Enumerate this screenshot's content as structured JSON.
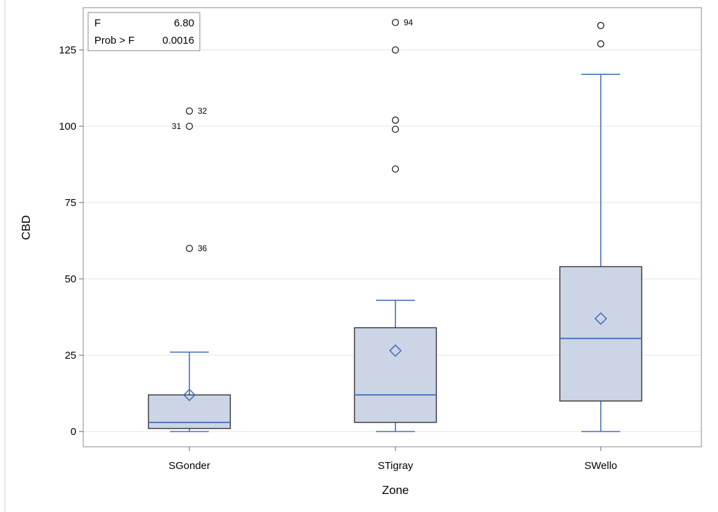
{
  "chart_data": {
    "type": "box",
    "xlabel": "Zone",
    "ylabel": "CBD",
    "ylim": [
      0,
      135
    ],
    "yticks": [
      0,
      25,
      50,
      75,
      100,
      125
    ],
    "grid": "horizontal",
    "colors": {
      "box_fill": "#cbd5e5",
      "box_edge": "#333333",
      "whisker": "#4a6fbf",
      "median": "#4a6fbf",
      "mean_marker": "#4a6fbf",
      "outlier": "#222222",
      "grid": "#e3e3e3"
    },
    "stats": {
      "f_label": "F",
      "f_value": "6.80",
      "p_label": "Prob > F",
      "p_value": "0.0016"
    },
    "groups": [
      {
        "category": "SGonder",
        "whisker_low": 0,
        "q1": 1,
        "median": 3,
        "q3": 12,
        "whisker_high": 26,
        "mean": 12,
        "outliers": [
          {
            "value": 105,
            "label": "32",
            "side": "right"
          },
          {
            "value": 100,
            "label": "31",
            "side": "left"
          },
          {
            "value": 60,
            "label": "36",
            "side": "right"
          }
        ]
      },
      {
        "category": "STigray",
        "whisker_low": 0,
        "q1": 3,
        "median": 12,
        "q3": 34,
        "whisker_high": 43,
        "mean": 26.5,
        "outliers": [
          {
            "value": 134,
            "label": "94",
            "side": "right"
          },
          {
            "value": 125,
            "label": "",
            "side": "right"
          },
          {
            "value": 102,
            "label": "",
            "side": "right"
          },
          {
            "value": 99,
            "label": "",
            "side": "right"
          },
          {
            "value": 86,
            "label": "",
            "side": "right"
          }
        ]
      },
      {
        "category": "SWello",
        "whisker_low": 0,
        "q1": 10,
        "median": 30.5,
        "q3": 54,
        "whisker_high": 117,
        "mean": 37,
        "outliers": [
          {
            "value": 133,
            "label": "",
            "side": "right"
          },
          {
            "value": 127,
            "label": "",
            "side": "right"
          }
        ]
      }
    ]
  }
}
